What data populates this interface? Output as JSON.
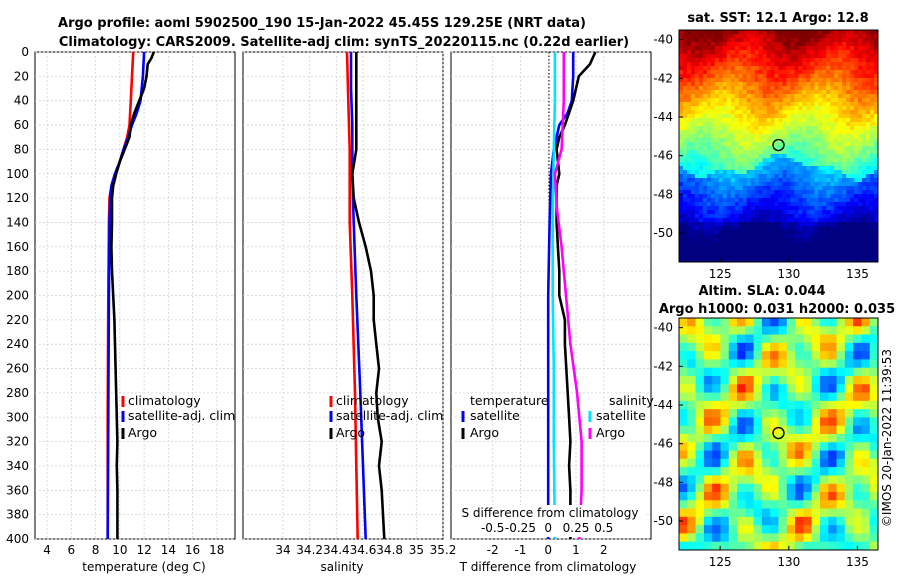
{
  "figure": {
    "title_line1": "Argo profile: aoml 5902500_190 15-Jan-2022 45.45S 129.25E (NRT data)",
    "title_line2": "Climatology: CARS2009. Satellite-adj clim: synTS_20220115.nc (0.22d earlier)",
    "watermark": "©IMOS 20-Jan-2022 11:39:53"
  },
  "colors": {
    "climatology": "#ff0000",
    "satellite": "#0000ff",
    "argo": "#000000",
    "sal_satellite": "#00e5ff",
    "sal_argo": "#ff00ff"
  },
  "depth_axis": {
    "ylim": [
      0,
      400
    ],
    "ticks": [
      0,
      20,
      40,
      60,
      80,
      100,
      120,
      140,
      160,
      180,
      200,
      220,
      240,
      260,
      280,
      300,
      320,
      340,
      360,
      380,
      400
    ]
  },
  "chart_data": [
    {
      "type": "line",
      "id": "temperature",
      "xlabel": "temperature (deg C)",
      "xlim": [
        3,
        19.5
      ],
      "xticks": [
        4,
        6,
        8,
        10,
        12,
        14,
        16,
        18
      ],
      "ylim": [
        400,
        0
      ],
      "legend": [
        "climatology",
        "satellite-adj. clim",
        "Argo"
      ],
      "series": [
        {
          "name": "climatology",
          "color": "#ff0000",
          "points": [
            [
              11.1,
              0
            ],
            [
              11.0,
              20
            ],
            [
              10.9,
              40
            ],
            [
              10.8,
              60
            ],
            [
              10.6,
              70
            ],
            [
              10.3,
              80
            ],
            [
              10.0,
              90
            ],
            [
              9.6,
              100
            ],
            [
              9.3,
              110
            ],
            [
              9.15,
              120
            ],
            [
              9.1,
              140
            ],
            [
              9.05,
              200
            ],
            [
              9.0,
              300
            ],
            [
              9.0,
              400
            ]
          ]
        },
        {
          "name": "satellite-adj. clim",
          "color": "#0000ff",
          "points": [
            [
              12.0,
              0
            ],
            [
              11.9,
              20
            ],
            [
              11.7,
              40
            ],
            [
              11.4,
              50
            ],
            [
              11.0,
              60
            ],
            [
              10.7,
              70
            ],
            [
              10.3,
              80
            ],
            [
              10.0,
              90
            ],
            [
              9.6,
              100
            ],
            [
              9.3,
              110
            ],
            [
              9.2,
              120
            ],
            [
              9.15,
              140
            ],
            [
              9.1,
              200
            ],
            [
              9.05,
              300
            ],
            [
              9.0,
              400
            ]
          ]
        },
        {
          "name": "Argo",
          "color": "#000000",
          "points": [
            [
              12.8,
              0
            ],
            [
              12.6,
              5
            ],
            [
              12.3,
              10
            ],
            [
              12.2,
              20
            ],
            [
              12.0,
              30
            ],
            [
              11.6,
              40
            ],
            [
              11.2,
              50
            ],
            [
              10.9,
              60
            ],
            [
              10.8,
              70
            ],
            [
              10.4,
              80
            ],
            [
              10.0,
              90
            ],
            [
              9.7,
              100
            ],
            [
              9.45,
              110
            ],
            [
              9.35,
              120
            ],
            [
              9.35,
              140
            ],
            [
              9.3,
              160
            ],
            [
              9.35,
              180
            ],
            [
              9.45,
              200
            ],
            [
              9.55,
              220
            ],
            [
              9.6,
              240
            ],
            [
              9.65,
              260
            ],
            [
              9.7,
              280
            ],
            [
              9.75,
              300
            ],
            [
              9.8,
              320
            ],
            [
              9.75,
              340
            ],
            [
              9.8,
              360
            ],
            [
              9.8,
              380
            ],
            [
              9.8,
              400
            ]
          ]
        }
      ]
    },
    {
      "type": "line",
      "id": "salinity",
      "xlabel": "salinity",
      "xlim": [
        33.7,
        35.2
      ],
      "xticks": [
        34,
        34.2,
        34.4,
        34.6,
        34.8,
        35,
        35.2
      ],
      "ylim": [
        400,
        0
      ],
      "legend": [
        "climatology",
        "satellite-adj. clim",
        "Argo"
      ],
      "series": [
        {
          "name": "climatology",
          "color": "#ff0000",
          "points": [
            [
              34.48,
              0
            ],
            [
              34.49,
              40
            ],
            [
              34.5,
              80
            ],
            [
              34.5,
              100
            ],
            [
              34.5,
              140
            ],
            [
              34.52,
              200
            ],
            [
              34.54,
              280
            ],
            [
              34.55,
              340
            ],
            [
              34.56,
              400
            ]
          ]
        },
        {
          "name": "satellite-adj. clim",
          "color": "#0000ff",
          "points": [
            [
              34.51,
              0
            ],
            [
              34.51,
              30
            ],
            [
              34.52,
              60
            ],
            [
              34.52,
              100
            ],
            [
              34.53,
              140
            ],
            [
              34.55,
              200
            ],
            [
              34.58,
              280
            ],
            [
              34.6,
              340
            ],
            [
              34.62,
              400
            ]
          ]
        },
        {
          "name": "Argo",
          "color": "#000000",
          "points": [
            [
              34.55,
              0
            ],
            [
              34.55,
              40
            ],
            [
              34.55,
              80
            ],
            [
              34.52,
              100
            ],
            [
              34.53,
              120
            ],
            [
              34.57,
              140
            ],
            [
              34.62,
              160
            ],
            [
              34.66,
              180
            ],
            [
              34.68,
              200
            ],
            [
              34.68,
              220
            ],
            [
              34.7,
              240
            ],
            [
              34.72,
              260
            ],
            [
              34.7,
              280
            ],
            [
              34.71,
              300
            ],
            [
              34.74,
              320
            ],
            [
              34.72,
              340
            ],
            [
              34.74,
              360
            ],
            [
              34.75,
              380
            ],
            [
              34.76,
              400
            ]
          ]
        }
      ]
    },
    {
      "type": "line",
      "id": "difference",
      "xlabel": "T difference from climatology",
      "xlabel_top": "S difference from climatology",
      "xlim": [
        -3.5,
        3.7
      ],
      "xticks": [
        -2,
        -1,
        0,
        1,
        2
      ],
      "xticks_top": [
        "-0.5",
        "-0.25",
        "0",
        "0.25",
        "0.5"
      ],
      "ylim": [
        400,
        0
      ],
      "legend_left_title": "temperature",
      "legend_right_title": "salinity",
      "legend_left": [
        "satellite",
        "Argo"
      ],
      "legend_right": [
        "satellite",
        "Argo"
      ],
      "series": [
        {
          "name": "T satellite",
          "color": "#0000ff",
          "points": [
            [
              0.9,
              0
            ],
            [
              0.9,
              20
            ],
            [
              0.85,
              40
            ],
            [
              0.7,
              50
            ],
            [
              0.4,
              60
            ],
            [
              0.2,
              80
            ],
            [
              0.1,
              100
            ],
            [
              0.05,
              140
            ],
            [
              0.0,
              200
            ],
            [
              0.0,
              400
            ]
          ]
        },
        {
          "name": "T Argo",
          "color": "#000000",
          "points": [
            [
              1.7,
              0
            ],
            [
              1.5,
              10
            ],
            [
              1.1,
              20
            ],
            [
              0.9,
              40
            ],
            [
              0.6,
              60
            ],
            [
              0.4,
              70
            ],
            [
              0.3,
              80
            ],
            [
              0.4,
              100
            ],
            [
              0.3,
              110
            ],
            [
              0.3,
              140
            ],
            [
              0.35,
              160
            ],
            [
              0.4,
              180
            ],
            [
              0.4,
              200
            ],
            [
              0.6,
              220
            ],
            [
              0.6,
              240
            ],
            [
              0.65,
              260
            ],
            [
              0.7,
              280
            ],
            [
              0.75,
              300
            ],
            [
              0.8,
              320
            ],
            [
              0.75,
              340
            ],
            [
              0.8,
              360
            ],
            [
              0.8,
              380
            ],
            [
              0.8,
              400
            ]
          ]
        },
        {
          "name": "S satellite",
          "color": "#00e5ff",
          "points": [
            [
              0.06,
              0
            ],
            [
              0.06,
              40
            ],
            [
              0.05,
              80
            ],
            [
              0.04,
              140
            ],
            [
              0.04,
              200
            ],
            [
              0.05,
              260
            ],
            [
              0.05,
              320
            ],
            [
              0.06,
              400
            ]
          ]
        },
        {
          "name": "S Argo",
          "color": "#ff00ff",
          "points": [
            [
              0.14,
              0
            ],
            [
              0.14,
              40
            ],
            [
              0.12,
              80
            ],
            [
              0.06,
              100
            ],
            [
              0.08,
              130
            ],
            [
              0.12,
              160
            ],
            [
              0.16,
              200
            ],
            [
              0.2,
              240
            ],
            [
              0.26,
              280
            ],
            [
              0.3,
              320
            ],
            [
              0.3,
              360
            ],
            [
              0.28,
              400
            ]
          ]
        }
      ]
    }
  ],
  "maps": [
    {
      "id": "sst",
      "title": "sat. SST: 12.1  Argo: 12.8",
      "xticks": [
        125,
        130,
        135
      ],
      "yticks": [
        -40,
        -42,
        -44,
        -46,
        -48,
        -50
      ],
      "xlim": [
        122,
        136.5
      ],
      "ylim": [
        -51.5,
        -39.5
      ],
      "marker": {
        "lon": 129.25,
        "lat": -45.45
      }
    },
    {
      "id": "sla",
      "title_line1": "Altim. SLA: 0.044",
      "title_line2": "Argo h1000: 0.031 h2000: 0.035",
      "xticks": [
        125,
        130,
        135
      ],
      "yticks": [
        -40,
        -42,
        -44,
        -46,
        -48,
        -50
      ],
      "xlim": [
        122,
        136.5
      ],
      "ylim": [
        -51.5,
        -39.5
      ],
      "marker": {
        "lon": 129.25,
        "lat": -45.45
      }
    }
  ]
}
